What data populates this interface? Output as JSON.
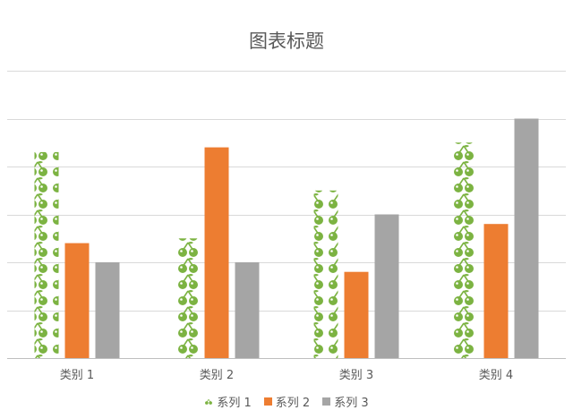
{
  "chart_data": {
    "type": "bar",
    "title": "图表标题",
    "categories": [
      "类别 1",
      "类别 2",
      "类别 3",
      "类别 4"
    ],
    "series": [
      {
        "name": "系列 1",
        "values": [
          4.3,
          2.5,
          3.5,
          4.5
        ],
        "color": "#7cb342",
        "fill": "cherry-icon-pattern"
      },
      {
        "name": "系列 2",
        "values": [
          2.4,
          4.4,
          1.8,
          2.8
        ],
        "color": "#ed7d31"
      },
      {
        "name": "系列 3",
        "values": [
          2.0,
          2.0,
          3.0,
          5.0
        ],
        "color": "#a5a5a5"
      }
    ],
    "ylim": [
      0,
      6
    ],
    "y_ticks": [
      0,
      1,
      2,
      3,
      4,
      5,
      6
    ],
    "y_tick_labels_shown": false,
    "grid": true,
    "legend": "bottom",
    "xlabel": "",
    "ylabel": ""
  }
}
